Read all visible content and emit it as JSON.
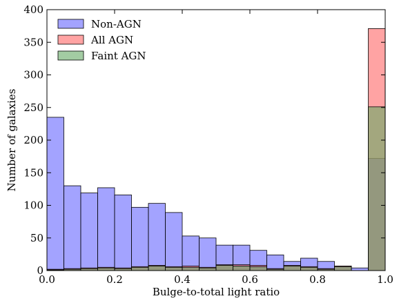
{
  "chart_data": {
    "type": "bar",
    "xlabel": "Bulge-to-total light ratio",
    "ylabel": "Number of galaxies",
    "xlim": [
      0.0,
      1.0
    ],
    "ylim": [
      0,
      400
    ],
    "x_ticks": [
      "0.0",
      "0.2",
      "0.4",
      "0.6",
      "0.8",
      "1.0"
    ],
    "y_ticks": [
      "0",
      "50",
      "100",
      "150",
      "200",
      "250",
      "300",
      "350",
      "400"
    ],
    "bin_edges": [
      0.0,
      0.05,
      0.1,
      0.15,
      0.2,
      0.25,
      0.3,
      0.35,
      0.4,
      0.45,
      0.5,
      0.55,
      0.6,
      0.65,
      0.7,
      0.75,
      0.8,
      0.85,
      0.9,
      0.95,
      1.0
    ],
    "legend_position": "top-left",
    "grid": false,
    "series": [
      {
        "name": "Non-AGN",
        "color": "#6666ff",
        "values": [
          235,
          130,
          119,
          127,
          116,
          97,
          103,
          89,
          53,
          50,
          39,
          39,
          31,
          24,
          14,
          19,
          14,
          7,
          4,
          172
        ]
      },
      {
        "name": "All AGN",
        "color": "#ff6666",
        "values": [
          2,
          3,
          4,
          5,
          4,
          6,
          8,
          6,
          7,
          5,
          9,
          9,
          8,
          3,
          8,
          6,
          3,
          7,
          0,
          371
        ]
      },
      {
        "name": "Faint AGN",
        "color": "#66aa66",
        "values": [
          1,
          2,
          3,
          4,
          3,
          5,
          7,
          5,
          5,
          4,
          8,
          7,
          6,
          2,
          7,
          5,
          2,
          6,
          0,
          251
        ]
      }
    ]
  }
}
